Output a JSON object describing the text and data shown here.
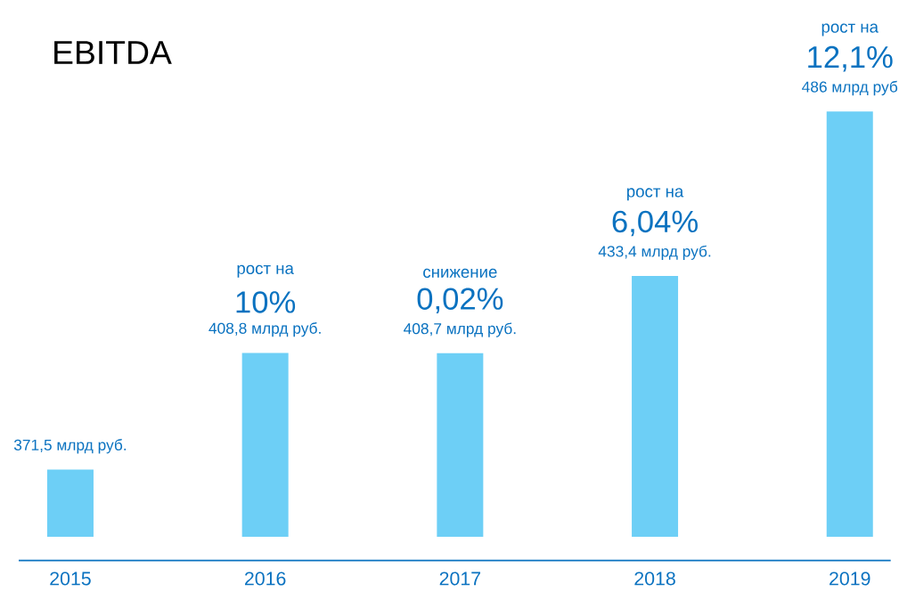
{
  "chart_data": {
    "type": "bar",
    "title": "EBITDA",
    "categories": [
      "2015",
      "2016",
      "2017",
      "2018",
      "2019"
    ],
    "values": [
      371.5,
      408.8,
      408.7,
      433.4,
      486
    ],
    "value_labels": [
      "371,5 млрд руб.",
      "408,8 млрд руб.",
      "408,7 млрд руб.",
      "433,4 млрд руб.",
      "486 млрд руб"
    ],
    "color": "#6dcff6",
    "ylim": [
      350,
      486
    ],
    "annotations": [
      "рост на",
      "10%",
      "снижение",
      "0,02%",
      "рост на",
      "6,04%",
      "рост на",
      "12,1%"
    ],
    "grid": false
  }
}
